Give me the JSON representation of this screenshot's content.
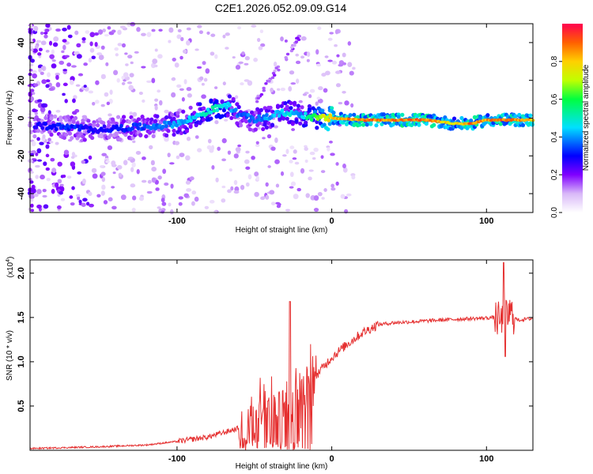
{
  "chart_data": [
    {
      "type": "heatmap",
      "title": "C2E1.2026.052.09.09.G14",
      "xlabel": "Height of straight line (km)",
      "ylabel": "Frequency (Hz)",
      "xlim": [
        -195,
        130
      ],
      "ylim": [
        -50,
        50
      ],
      "xticks": [
        -100,
        0,
        100
      ],
      "yticks": [
        -40,
        -20,
        0,
        20,
        40
      ],
      "colorbar": {
        "label": "Normalized spectral amplitude",
        "range": [
          0,
          1
        ],
        "ticks": [
          0.0,
          0.2,
          0.4,
          0.6,
          0.8
        ]
      },
      "ridge": {
        "x": [
          -190,
          -170,
          -150,
          -130,
          -110,
          -95,
          -85,
          -75,
          -68,
          -60,
          -50,
          -40,
          -30,
          -20,
          -10,
          0,
          20,
          60,
          80,
          90,
          100,
          110,
          120,
          130
        ],
        "freq": [
          -4,
          -5,
          -6,
          -5,
          -4,
          -2,
          2,
          5,
          7,
          2,
          -1,
          1,
          3,
          2,
          0,
          0,
          -1,
          -1,
          -3,
          -3,
          -1,
          -1,
          -1,
          -1
        ],
        "amplitude": [
          0.3,
          0.35,
          0.3,
          0.35,
          0.4,
          0.45,
          0.5,
          0.55,
          0.5,
          0.4,
          0.4,
          0.45,
          0.5,
          0.45,
          0.7,
          0.85,
          0.95,
          0.95,
          0.8,
          0.95,
          0.9,
          0.95,
          0.9,
          0.9
        ]
      }
    },
    {
      "type": "line",
      "xlabel": "Height of straight line (km)",
      "ylabel": "SNR (10 * v/v)",
      "scale_label": "(x10",
      "scale_exp": "4",
      "xlim": [
        -195,
        130
      ],
      "ylim": [
        0,
        2.15
      ],
      "xticks": [
        -100,
        0,
        100
      ],
      "yticks": [
        0.5,
        1.0,
        1.5,
        2.0
      ],
      "series": [
        {
          "name": "SNR",
          "color": "#e53030",
          "x": [
            -195,
            -150,
            -120,
            -100,
            -80,
            -60,
            -50,
            -40,
            -30,
            -25,
            -20,
            -10,
            0,
            10,
            20,
            30,
            40,
            60,
            80,
            95,
            105,
            110,
            115,
            120,
            130
          ],
          "y": [
            0.02,
            0.04,
            0.06,
            0.1,
            0.15,
            0.25,
            0.35,
            0.45,
            0.55,
            0.6,
            0.65,
            0.85,
            1.05,
            1.2,
            1.33,
            1.42,
            1.44,
            1.46,
            1.48,
            1.49,
            1.5,
            1.45,
            1.55,
            1.47,
            1.49
          ]
        }
      ]
    }
  ]
}
